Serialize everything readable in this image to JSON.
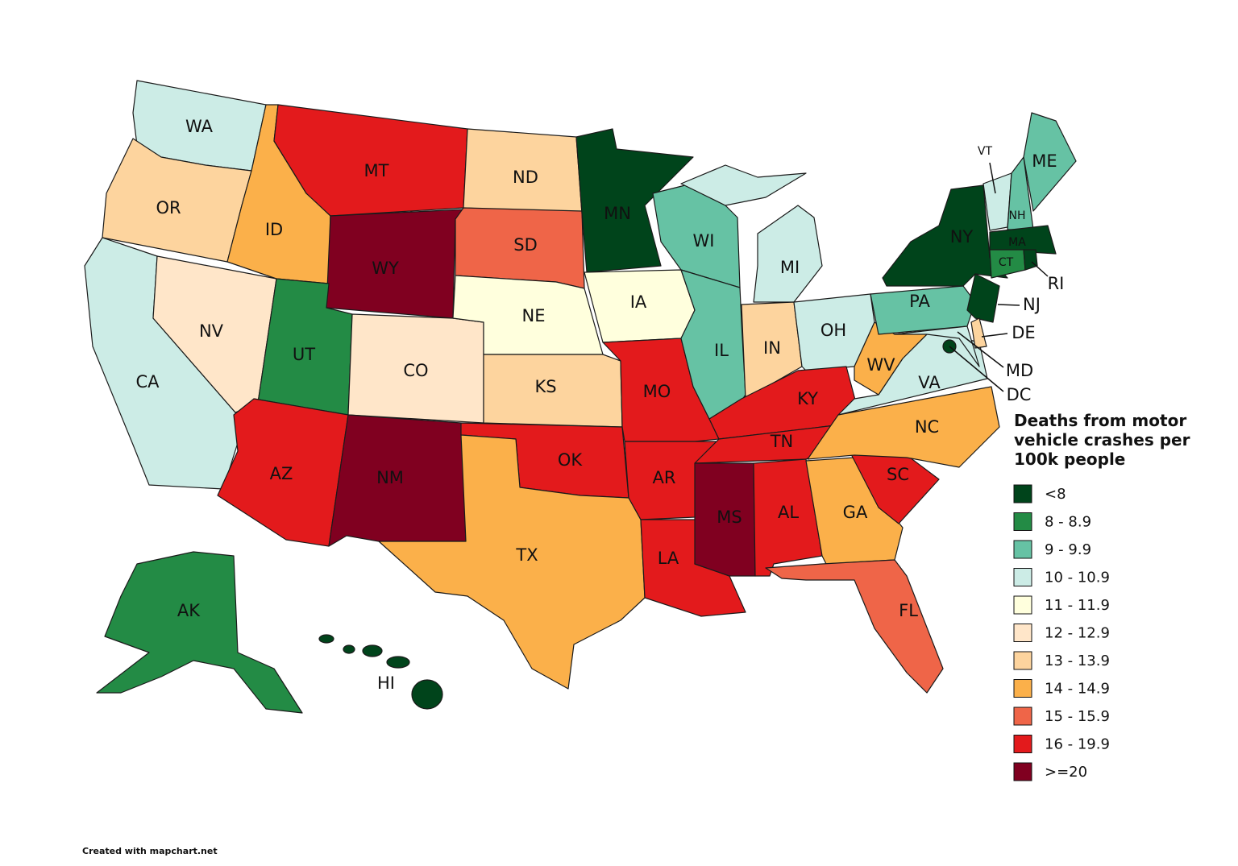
{
  "legend": {
    "title": "Deaths from motor vehicle crashes per 100k people",
    "items": [
      {
        "label": "<8",
        "color": "#00441b"
      },
      {
        "label": "8 - 8.9",
        "color": "#238b45"
      },
      {
        "label": "9 - 9.9",
        "color": "#66c2a4"
      },
      {
        "label": "10 - 10.9",
        "color": "#ccece6"
      },
      {
        "label": "11 - 11.9",
        "color": "#ffffdd"
      },
      {
        "label": "12 - 12.9",
        "color": "#ffe6c9"
      },
      {
        "label": "13 - 13.9",
        "color": "#fdd49e"
      },
      {
        "label": "14 - 14.9",
        "color": "#fbb04a"
      },
      {
        "label": "15 - 15.9",
        "color": "#ef6548"
      },
      {
        "label": "16 - 19.9",
        "color": "#e31a1c"
      },
      {
        "label": ">=20",
        "color": "#800020"
      }
    ]
  },
  "states": [
    {
      "label": "WA",
      "bin": "10 - 10.9"
    },
    {
      "label": "OR",
      "bin": "13 - 13.9"
    },
    {
      "label": "CA",
      "bin": "10 - 10.9"
    },
    {
      "label": "NV",
      "bin": "12 - 12.9"
    },
    {
      "label": "ID",
      "bin": "14 - 14.9"
    },
    {
      "label": "MT",
      "bin": "16 - 19.9"
    },
    {
      "label": "WY",
      "bin": ">=20"
    },
    {
      "label": "UT",
      "bin": "8 - 8.9"
    },
    {
      "label": "CO",
      "bin": "12 - 12.9"
    },
    {
      "label": "AZ",
      "bin": "16 - 19.9"
    },
    {
      "label": "NM",
      "bin": ">=20"
    },
    {
      "label": "ND",
      "bin": "13 - 13.9"
    },
    {
      "label": "SD",
      "bin": "15 - 15.9"
    },
    {
      "label": "NE",
      "bin": "11 - 11.9"
    },
    {
      "label": "KS",
      "bin": "13 - 13.9"
    },
    {
      "label": "OK",
      "bin": "16 - 19.9"
    },
    {
      "label": "TX",
      "bin": "14 - 14.9"
    },
    {
      "label": "MN",
      "bin": "<8"
    },
    {
      "label": "IA",
      "bin": "11 - 11.9"
    },
    {
      "label": "MO",
      "bin": "16 - 19.9"
    },
    {
      "label": "AR",
      "bin": "16 - 19.9"
    },
    {
      "label": "LA",
      "bin": "16 - 19.9"
    },
    {
      "label": "WI",
      "bin": "9 - 9.9"
    },
    {
      "label": "IL",
      "bin": "9 - 9.9"
    },
    {
      "label": "MI",
      "bin": "10 - 10.9"
    },
    {
      "label": "IN",
      "bin": "13 - 13.9"
    },
    {
      "label": "OH",
      "bin": "10 - 10.9"
    },
    {
      "label": "KY",
      "bin": "16 - 19.9"
    },
    {
      "label": "TN",
      "bin": "16 - 19.9"
    },
    {
      "label": "MS",
      "bin": ">=20"
    },
    {
      "label": "AL",
      "bin": "16 - 19.9"
    },
    {
      "label": "GA",
      "bin": "14 - 14.9"
    },
    {
      "label": "FL",
      "bin": "15 - 15.9"
    },
    {
      "label": "SC",
      "bin": "16 - 19.9"
    },
    {
      "label": "NC",
      "bin": "14 - 14.9"
    },
    {
      "label": "VA",
      "bin": "10 - 10.9"
    },
    {
      "label": "WV",
      "bin": "14 - 14.9"
    },
    {
      "label": "PA",
      "bin": "9 - 9.9"
    },
    {
      "label": "NY",
      "bin": "<8"
    },
    {
      "label": "NJ",
      "bin": "<8"
    },
    {
      "label": "DE",
      "bin": "13 - 13.9"
    },
    {
      "label": "MD",
      "bin": "10 - 10.9"
    },
    {
      "label": "DC",
      "bin": "<8"
    },
    {
      "label": "VT",
      "bin": "10 - 10.9"
    },
    {
      "label": "NH",
      "bin": "9 - 9.9"
    },
    {
      "label": "ME",
      "bin": "9 - 9.9"
    },
    {
      "label": "MA",
      "bin": "<8"
    },
    {
      "label": "CT",
      "bin": "8 - 8.9"
    },
    {
      "label": "RI",
      "bin": "<8"
    },
    {
      "label": "AK",
      "bin": "8 - 8.9"
    },
    {
      "label": "HI",
      "bin": "<8"
    }
  ],
  "credit": "Created with mapchart.net"
}
